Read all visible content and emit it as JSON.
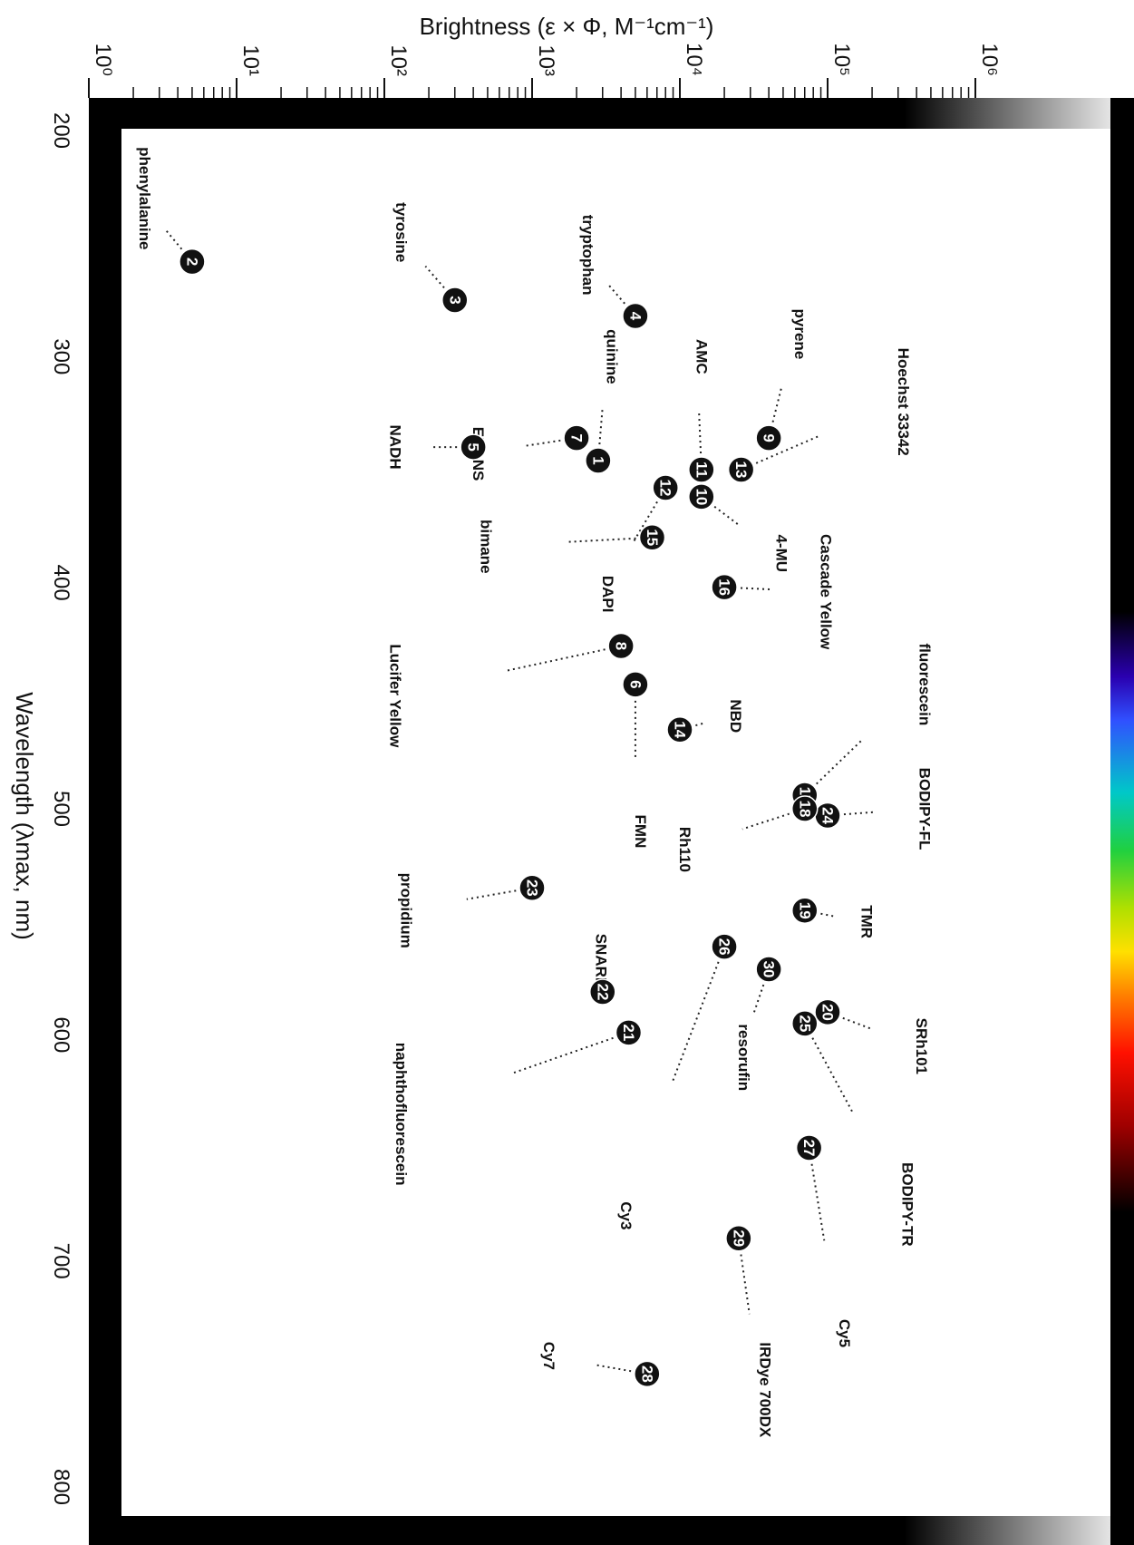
{
  "chart_data": {
    "type": "scatter",
    "xlabel": "Brightness (ε × Φ, M⁻¹cm⁻¹)",
    "ylabel": "Wavelength (λmax, nm)",
    "x_scale": "log",
    "xlim": [
      1,
      1000000
    ],
    "ylim": [
      200,
      830
    ],
    "x_ticks": [
      "10⁰",
      "10¹",
      "10²",
      "10³",
      "10⁴",
      "10⁵",
      "10⁶"
    ],
    "y_ticks": [
      "200",
      "300",
      "400",
      "500",
      "600",
      "700",
      "800"
    ],
    "points": [
      {
        "id": "2",
        "name": "phenylalanine",
        "x": 5,
        "y": 258,
        "color": "#111111"
      },
      {
        "id": "3",
        "name": "tyrosine",
        "x": 300,
        "y": 275,
        "color": "#111111"
      },
      {
        "id": "4",
        "name": "tryptophan",
        "x": 5000,
        "y": 282,
        "color": "#111111"
      },
      {
        "id": "5",
        "name": "NADH",
        "x": 400,
        "y": 340,
        "color": "#5b3bb5"
      },
      {
        "id": "1",
        "name": "quinine",
        "x": 2800,
        "y": 346,
        "color": "#3a6bd8"
      },
      {
        "id": "7",
        "name": "EDANS",
        "x": 2000,
        "y": 336,
        "color": "#6cc26c"
      },
      {
        "id": "9",
        "name": "pyrene",
        "x": 40000,
        "y": 336,
        "color": "#555555"
      },
      {
        "id": "13",
        "name": "Hoechst 33342",
        "x": 26000,
        "y": 350,
        "color": "#3a6bd8"
      },
      {
        "id": "11",
        "name": "AMC",
        "x": 14000,
        "y": 350,
        "color": "#6a4fb0"
      },
      {
        "id": "12",
        "name": "DAPI",
        "x": 8000,
        "y": 358,
        "color": "#3a6bd8"
      },
      {
        "id": "10",
        "name": "4-MU",
        "x": 14000,
        "y": 362,
        "color": "#6a4fb0"
      },
      {
        "id": "15",
        "name": "bimane",
        "x": 6500,
        "y": 380,
        "color": "#2bb3b3"
      },
      {
        "id": "16",
        "name": "Cascade Yellow",
        "x": 20000,
        "y": 402,
        "color": "#b8c400"
      },
      {
        "id": "8",
        "name": "Lucifer Yellow",
        "x": 4000,
        "y": 428,
        "color": "#88cc66"
      },
      {
        "id": "6",
        "name": "FMN",
        "x": 5000,
        "y": 445,
        "color": "#7cc97c"
      },
      {
        "id": "14",
        "name": "NBD",
        "x": 10000,
        "y": 465,
        "color": "#4fb04f"
      },
      {
        "id": "17",
        "name": "fluorescein",
        "x": 70000,
        "y": 494,
        "color": "#6cc26c"
      },
      {
        "id": "24",
        "name": "BODIPY-FL",
        "x": 100000,
        "y": 503,
        "color": "#6cc26c"
      },
      {
        "id": "18",
        "name": "Rh110",
        "x": 70000,
        "y": 500,
        "color": "#6cc26c"
      },
      {
        "id": "23",
        "name": "propidium",
        "x": 1000,
        "y": 535,
        "color": "#d94f4f"
      },
      {
        "id": "19",
        "name": "TMR",
        "x": 70000,
        "y": 545,
        "color": "#b8c400"
      },
      {
        "id": "26",
        "name": "Cy3",
        "x": 20000,
        "y": 561,
        "color": "#b8c400"
      },
      {
        "id": "30",
        "name": "resorufin",
        "x": 40000,
        "y": 571,
        "color": "#e08a2a"
      },
      {
        "id": "22",
        "name": "SNARF-1",
        "x": 3000,
        "y": 581,
        "color": "#d94f4f"
      },
      {
        "id": "20",
        "name": "SRh101",
        "x": 100000,
        "y": 590,
        "color": "#d94f4f"
      },
      {
        "id": "25",
        "name": "BODIPY-TR",
        "x": 70000,
        "y": 595,
        "color": "#d94f4f"
      },
      {
        "id": "21",
        "name": "naphthofluorescein",
        "x": 4500,
        "y": 599,
        "color": "#c04040"
      },
      {
        "id": "27",
        "name": "Cy5",
        "x": 75000,
        "y": 650,
        "color": "#8b2020"
      },
      {
        "id": "29",
        "name": "IRDye 700DX",
        "x": 25000,
        "y": 690,
        "color": "#8b3a3a"
      },
      {
        "id": "28",
        "name": "Cy7",
        "x": 6000,
        "y": 750,
        "color": "#333333"
      }
    ],
    "dye_labels": [
      {
        "text": "phenylalanine",
        "x": 2.2,
        "y": 230,
        "color": "#111111"
      },
      {
        "text": "tyrosine",
        "x": 120,
        "y": 245,
        "color": "#111111"
      },
      {
        "text": "tryptophan",
        "x": 2200,
        "y": 255,
        "color": "#111111"
      },
      {
        "text": "quinine",
        "x": 3200,
        "y": 300,
        "color": "#111111"
      },
      {
        "text": "AMC",
        "x": 13000,
        "y": 300,
        "color": "#111111"
      },
      {
        "text": "pyrene",
        "x": 60000,
        "y": 290,
        "color": "#111111"
      },
      {
        "text": "Hoechst 33342",
        "x": 300000,
        "y": 320,
        "color": "#111111"
      },
      {
        "text": "NADH",
        "x": 110,
        "y": 340,
        "color": "#111111"
      },
      {
        "text": "EDANS",
        "x": 400,
        "y": 343,
        "color": "#111111"
      },
      {
        "text": "4-MU",
        "x": 45000,
        "y": 387,
        "color": "#111111"
      },
      {
        "text": "Cascade Yellow",
        "x": 90000,
        "y": 404,
        "color": "#111111"
      },
      {
        "text": "DAPI",
        "x": 3000,
        "y": 405,
        "color": "#111111"
      },
      {
        "text": "bimane",
        "x": 450,
        "y": 384,
        "color": "#111111"
      },
      {
        "text": "Lucifer Yellow",
        "x": 110,
        "y": 450,
        "color": "#111111"
      },
      {
        "text": "fluorescein",
        "x": 420000,
        "y": 445,
        "color": "#111111"
      },
      {
        "text": "NBD",
        "x": 22000,
        "y": 459,
        "color": "#111111"
      },
      {
        "text": "BODIPY-FL",
        "x": 420000,
        "y": 500,
        "color": "#111111"
      },
      {
        "text": "FMN",
        "x": 5000,
        "y": 510,
        "color": "#111111"
      },
      {
        "text": "Rh110",
        "x": 10000,
        "y": 518,
        "color": "#111111"
      },
      {
        "text": "propidium",
        "x": 130,
        "y": 545,
        "color": "#111111"
      },
      {
        "text": "TMR",
        "x": 170000,
        "y": 550,
        "color": "#111111"
      },
      {
        "text": "SNARF-1",
        "x": 2700,
        "y": 570,
        "color": "#111111"
      },
      {
        "text": "SRh101",
        "x": 400000,
        "y": 605,
        "color": "#111111"
      },
      {
        "text": "naphthofluorescein",
        "x": 120,
        "y": 635,
        "color": "#111111"
      },
      {
        "text": "resorufin",
        "x": 25000,
        "y": 610,
        "color": "#111111"
      },
      {
        "text": "BODIPY-TR",
        "x": 320000,
        "y": 675,
        "color": "#111111"
      },
      {
        "text": "Cy3",
        "x": 4000,
        "y": 680,
        "color": "#111111"
      },
      {
        "text": "IRDye 700DX",
        "x": 35000,
        "y": 757,
        "color": "#111111"
      },
      {
        "text": "Cy5",
        "x": 120000,
        "y": 732,
        "color": "#111111"
      },
      {
        "text": "Cy7",
        "x": 1200,
        "y": 742,
        "color": "#111111"
      }
    ]
  }
}
